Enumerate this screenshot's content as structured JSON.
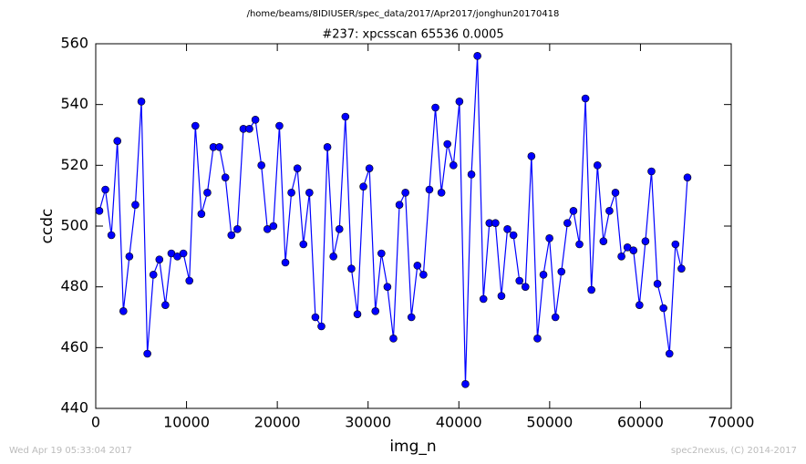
{
  "chart_data": {
    "type": "line",
    "suptitle": "/home/beams/8IDIUSER/spec_data/2017/Apr2017/jonghun20170418",
    "title": "#237: xpcsscan 65536 0.0005",
    "xlabel": "img_n",
    "ylabel": "ccdc",
    "footer_left": "Wed Apr 19 05:33:04 2017",
    "footer_right": "spec2nexus, (C) 2014-2017",
    "xlim": [
      0,
      70000
    ],
    "ylim": [
      440,
      560
    ],
    "xticks": [
      0,
      10000,
      20000,
      30000,
      40000,
      50000,
      60000,
      70000
    ],
    "yticks": [
      440,
      460,
      480,
      500,
      520,
      540,
      560
    ],
    "grid": false,
    "series": [
      {
        "color": "#0000ff",
        "x": [
          400,
          1061,
          1722,
          2383,
          3044,
          3705,
          4366,
          5027,
          5688,
          6349,
          7010,
          7671,
          8332,
          8993,
          9654,
          10315,
          10976,
          11637,
          12298,
          12959,
          13620,
          14281,
          14942,
          15603,
          16264,
          16925,
          17586,
          18247,
          18908,
          19569,
          20230,
          20891,
          21552,
          22213,
          22874,
          23535,
          24196,
          24857,
          25518,
          26179,
          26840,
          27501,
          28162,
          28823,
          29484,
          30145,
          30806,
          31467,
          32128,
          32789,
          33450,
          34111,
          34772,
          35433,
          36094,
          36755,
          37416,
          38077,
          38738,
          39399,
          40060,
          40721,
          41382,
          42043,
          42704,
          43365,
          44026,
          44687,
          45348,
          46009,
          46670,
          47331,
          47992,
          48653,
          49314,
          49975,
          50636,
          51297,
          51958,
          52619,
          53280,
          53941,
          54602,
          55263,
          55924,
          56585,
          57246,
          57907,
          58568,
          59229,
          59890,
          60551,
          61212,
          61873,
          62534,
          63195,
          63856,
          64517,
          65178
        ],
        "values": [
          505,
          512,
          497,
          528,
          472,
          490,
          507,
          541,
          458,
          484,
          489,
          474,
          491,
          490,
          491,
          482,
          533,
          504,
          511,
          526,
          526,
          516,
          497,
          499,
          532,
          532,
          535,
          520,
          499,
          500,
          533,
          488,
          511,
          519,
          494,
          511,
          470,
          467,
          526,
          490,
          499,
          536,
          486,
          471,
          513,
          519,
          472,
          491,
          480,
          463,
          507,
          511,
          470,
          487,
          484,
          512,
          539,
          511,
          527,
          520,
          541,
          448,
          517,
          556,
          476,
          501,
          501,
          477,
          499,
          497,
          482,
          480,
          523,
          463,
          484,
          496,
          470,
          485,
          501,
          505,
          494,
          542,
          479,
          520,
          495,
          505,
          511,
          490,
          493,
          492,
          474,
          495,
          518,
          481,
          473,
          458,
          494,
          486,
          516
        ]
      }
    ]
  }
}
